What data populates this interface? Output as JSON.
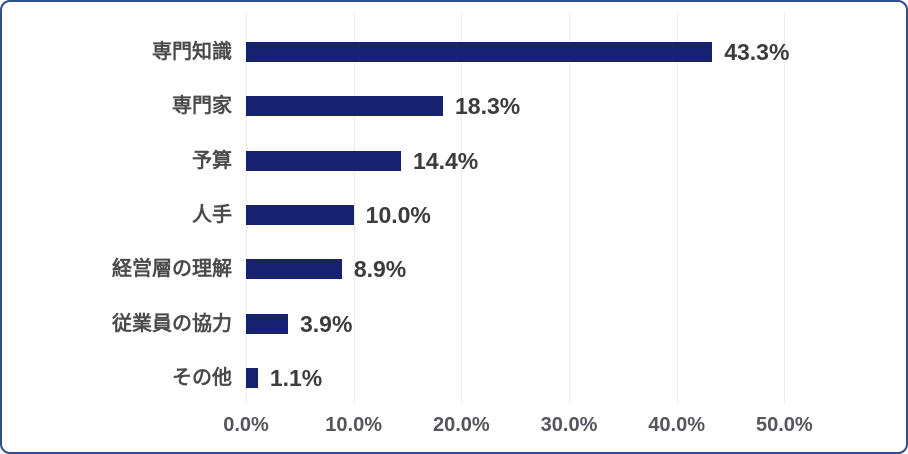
{
  "chart_data": {
    "type": "bar",
    "orientation": "horizontal",
    "title": "",
    "xlabel": "",
    "ylabel": "",
    "categories": [
      "専門知識",
      "専門家",
      "予算",
      "人手",
      "経営層の理解",
      "従業員の協力",
      "その他"
    ],
    "values": [
      43.3,
      18.3,
      14.4,
      10.0,
      8.9,
      3.9,
      1.1
    ],
    "value_labels": [
      "43.3%",
      "18.3%",
      "14.4%",
      "10.0%",
      "8.9%",
      "3.9%",
      "1.1%"
    ],
    "x_tick_labels": [
      "0.0%",
      "10.0%",
      "20.0%",
      "30.0%",
      "40.0%",
      "50.0%"
    ],
    "x_tick_values": [
      0,
      10,
      20,
      30,
      40,
      50
    ],
    "xlim": [
      0,
      60
    ],
    "grid": "vertical",
    "legend": "none",
    "bar_color": "#162270",
    "grid_color": "#ececf3",
    "frame_border_color": "#2f4e8c",
    "background_color": "#ffffff"
  }
}
